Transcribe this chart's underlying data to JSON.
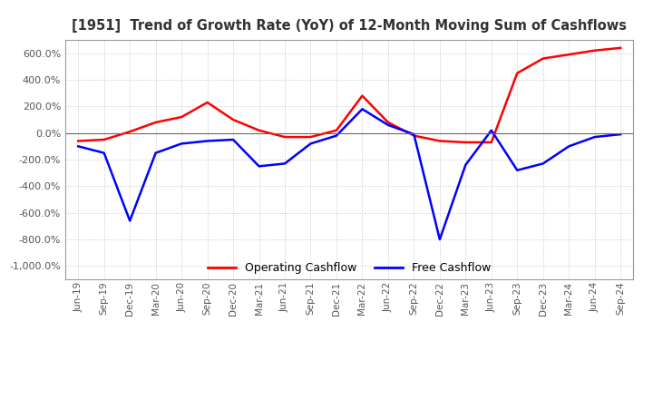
{
  "title": "[1951]  Trend of Growth Rate (YoY) of 12-Month Moving Sum of Cashflows",
  "ylim": [
    -1100,
    700
  ],
  "yticks": [
    600,
    400,
    200,
    0,
    -200,
    -400,
    -600,
    -800,
    -1000
  ],
  "background_color": "#ffffff",
  "grid_color": "#bbbbbb",
  "operating_color": "#ff0000",
  "free_color": "#0000ff",
  "legend_labels": [
    "Operating Cashflow",
    "Free Cashflow"
  ],
  "x_labels": [
    "Jun-19",
    "Sep-19",
    "Dec-19",
    "Mar-20",
    "Jun-20",
    "Sep-20",
    "Dec-20",
    "Mar-21",
    "Jun-21",
    "Sep-21",
    "Dec-21",
    "Mar-22",
    "Jun-22",
    "Sep-22",
    "Dec-22",
    "Mar-23",
    "Jun-23",
    "Sep-23",
    "Dec-23",
    "Mar-24",
    "Jun-24",
    "Sep-24"
  ],
  "operating_cashflow": [
    -60,
    -50,
    10,
    80,
    120,
    230,
    100,
    20,
    -30,
    -30,
    20,
    280,
    80,
    -20,
    -60,
    -70,
    -70,
    450,
    560,
    590,
    620,
    640
  ],
  "free_cashflow": [
    -100,
    -150,
    -660,
    -150,
    -80,
    -60,
    -50,
    -250,
    -230,
    -80,
    -20,
    180,
    60,
    -10,
    -800,
    -240,
    20,
    -280,
    -230,
    -100,
    -30,
    -10
  ]
}
